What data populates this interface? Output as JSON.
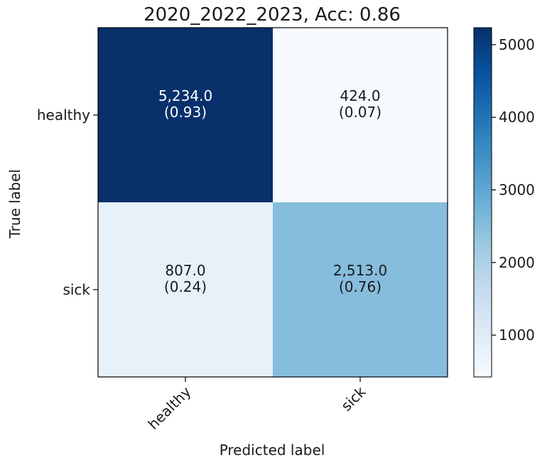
{
  "chart_data": {
    "type": "heatmap",
    "title": "2020_2022_2023, Acc: 0.86",
    "xlabel": "Predicted label",
    "ylabel": "True label",
    "x_categories": [
      "healthy",
      "sick"
    ],
    "y_categories": [
      "healthy",
      "sick"
    ],
    "values": [
      [
        5234,
        424
      ],
      [
        807,
        2513
      ]
    ],
    "value_labels": [
      [
        "5,234.0",
        "424.0"
      ],
      [
        "807.0",
        "2,513.0"
      ]
    ],
    "normalized_labels": [
      [
        "(0.93)",
        "(0.07)"
      ],
      [
        "(0.24)",
        "(0.76)"
      ]
    ],
    "colorbar": {
      "min": 424,
      "max": 5234,
      "ticks": [
        1000,
        2000,
        3000,
        4000,
        5000
      ],
      "colormap": "Blues"
    },
    "grid": false
  }
}
